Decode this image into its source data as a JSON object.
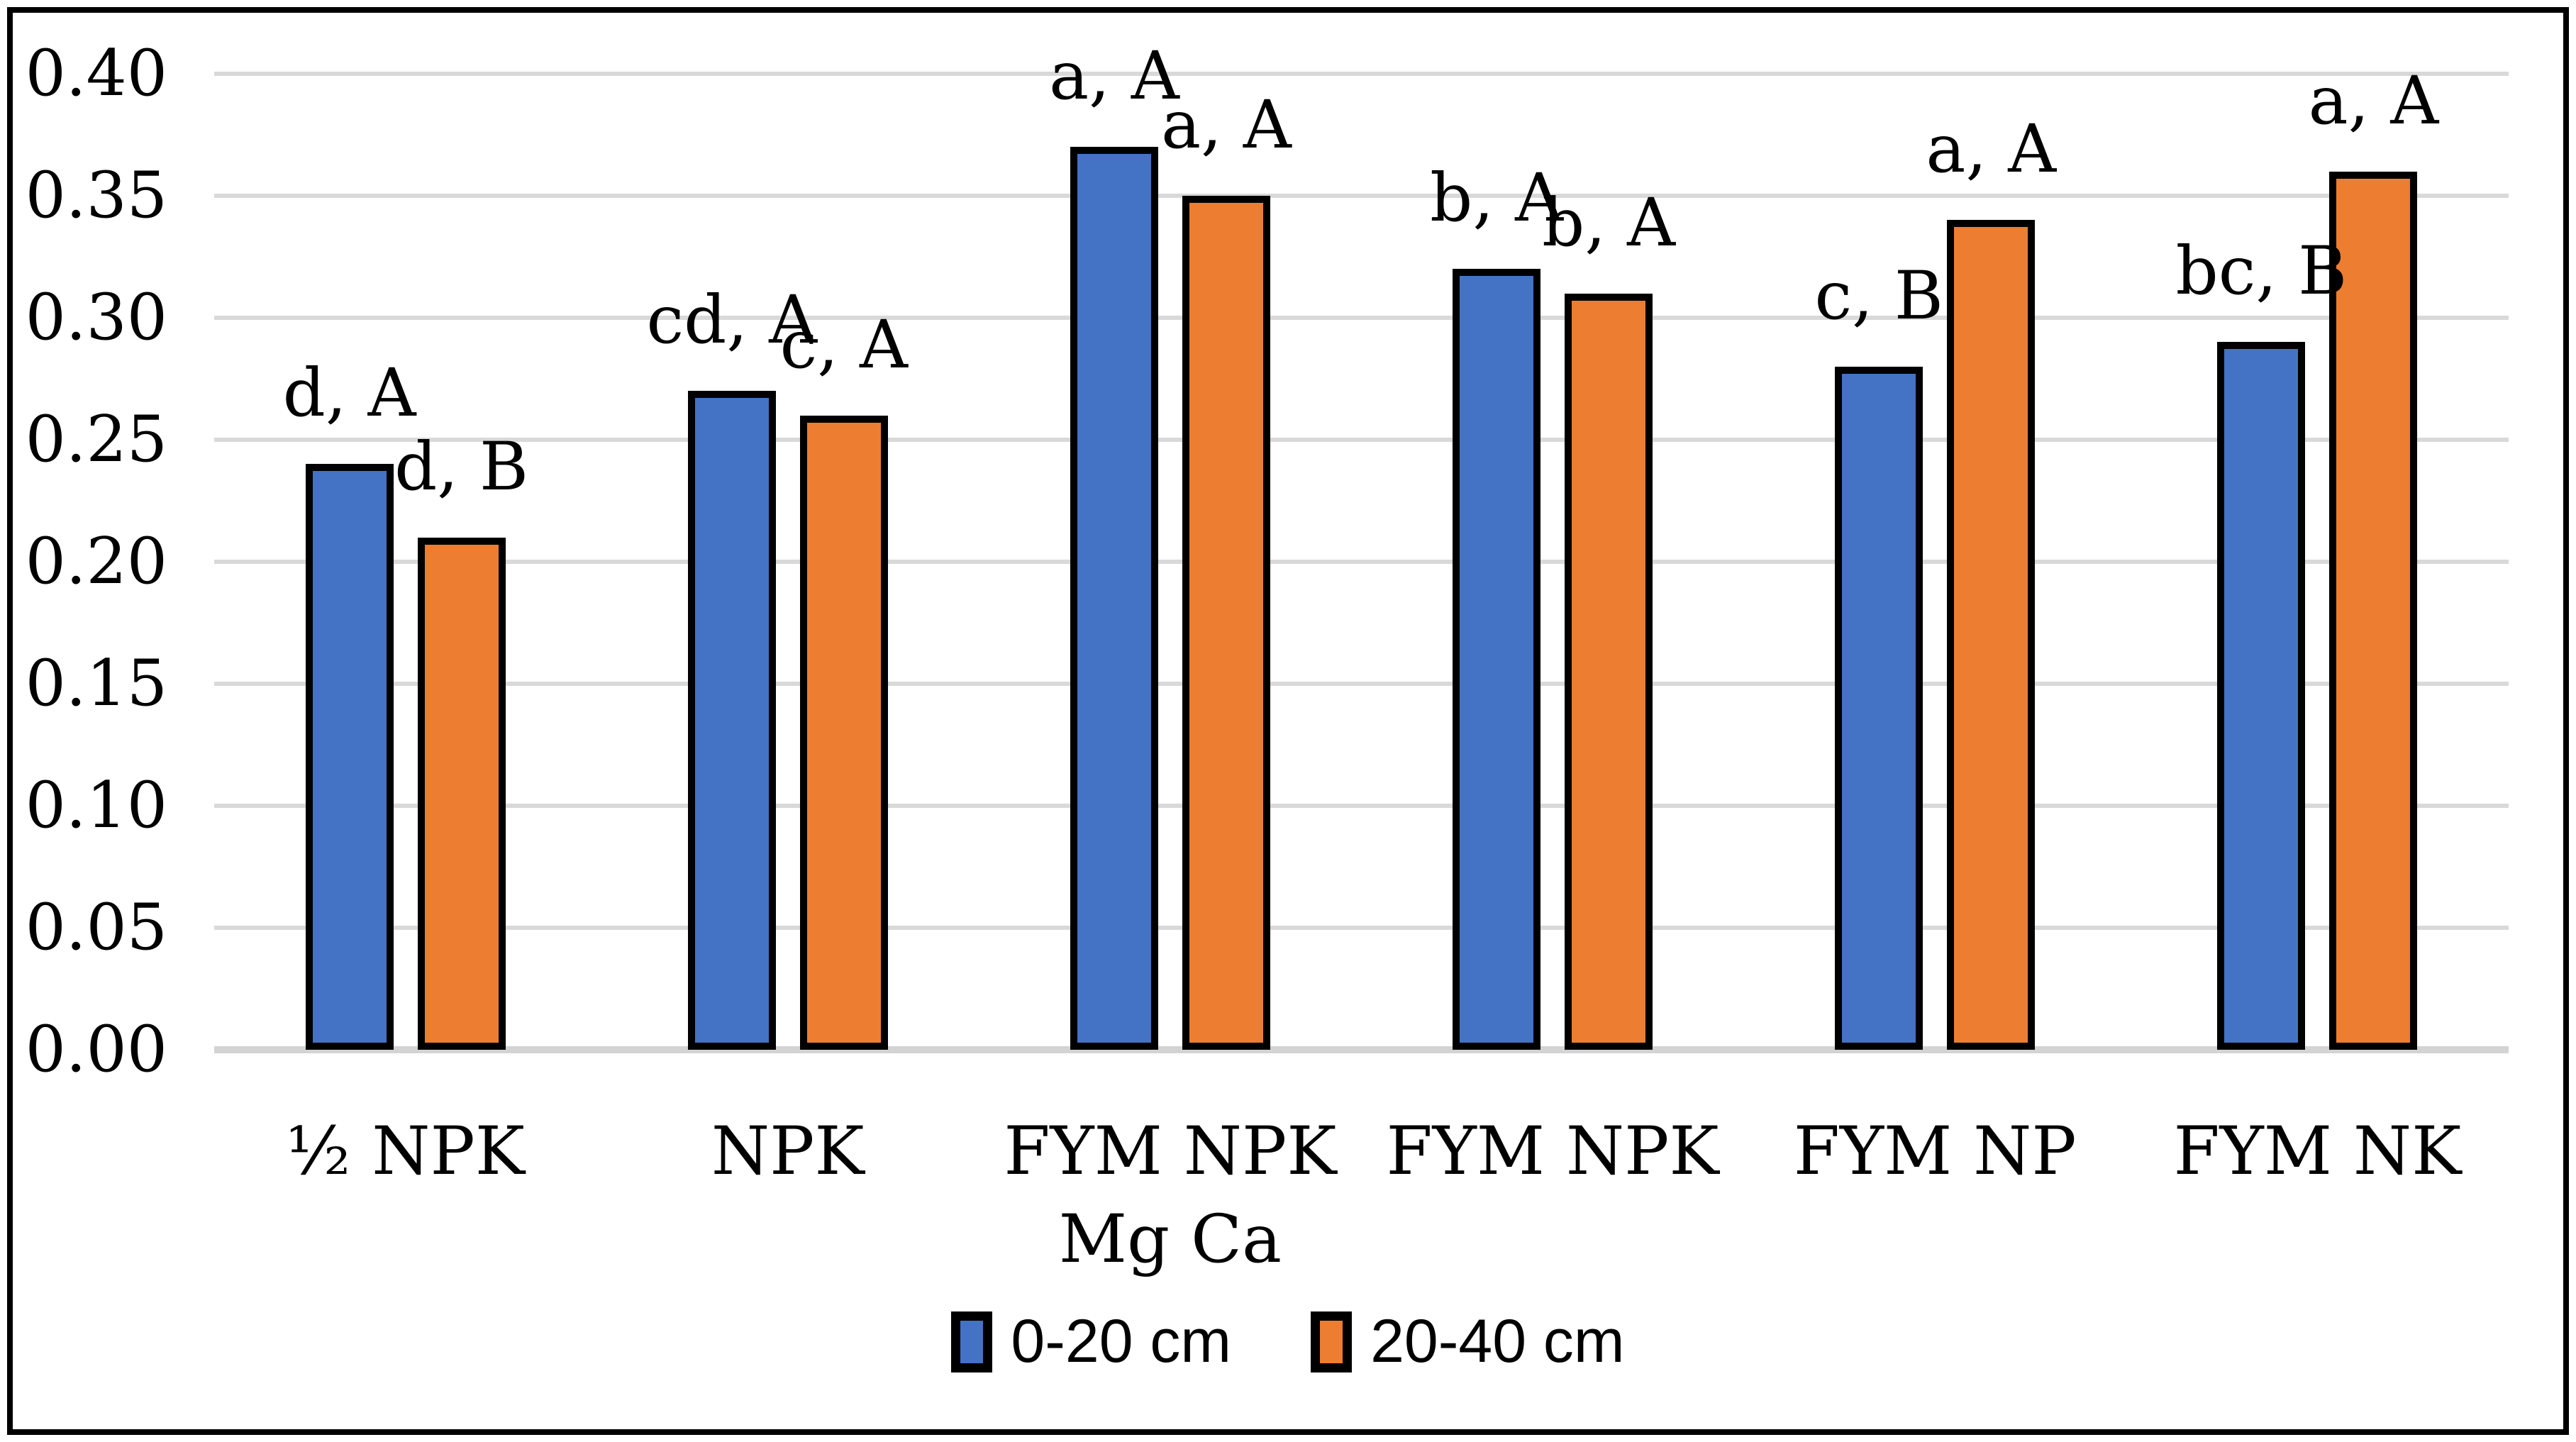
{
  "chart_data": {
    "type": "bar",
    "title": "",
    "xlabel": "",
    "ylabel": "",
    "grid": true,
    "legend_position": "bottom",
    "ylim": [
      0,
      0.4
    ],
    "y_ticks": [
      "0.00",
      "0.05",
      "0.10",
      "0.15",
      "0.20",
      "0.25",
      "0.30",
      "0.35",
      "0.40"
    ],
    "categories": [
      {
        "label": "½ NPK",
        "sublabel": ""
      },
      {
        "label": "NPK",
        "sublabel": ""
      },
      {
        "label": "FYM NPK",
        "sublabel": "Mg Ca"
      },
      {
        "label": "FYM NPK",
        "sublabel": ""
      },
      {
        "label": "FYM NP",
        "sublabel": ""
      },
      {
        "label": "FYM NK",
        "sublabel": ""
      }
    ],
    "series": [
      {
        "name": "0-20 cm",
        "color": "#4472C4",
        "values": [
          0.24,
          0.27,
          0.37,
          0.32,
          0.28,
          0.29
        ],
        "annotations": [
          "d, A",
          "cd, A",
          "a, A",
          "b, A",
          "c, B",
          "bc, B"
        ]
      },
      {
        "name": "20-40 cm",
        "color": "#ED7D31",
        "values": [
          0.21,
          0.26,
          0.35,
          0.31,
          0.34,
          0.36
        ],
        "annotations": [
          "d, B",
          "c, A",
          "a, A",
          "b, A",
          "a, A",
          "a, A"
        ]
      }
    ]
  },
  "colors": {
    "series_blue": "#4472C4",
    "series_orange": "#ED7D31",
    "bar_border": "#000000",
    "gridline": "#D9D9D9",
    "axis_line": "#D3D3D3",
    "frame": "#000000",
    "background": "#FFFFFF",
    "text": "#000000"
  }
}
